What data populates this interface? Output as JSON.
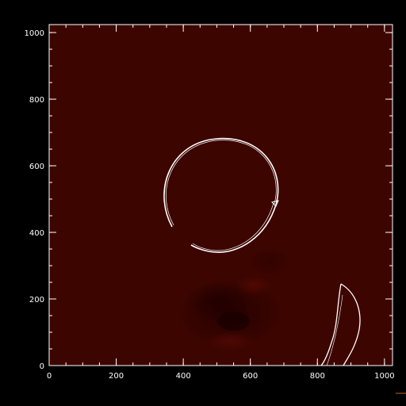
{
  "chart_data": {
    "type": "image",
    "x_ticks": [
      "0",
      "200",
      "400",
      "600",
      "800",
      "1000"
    ],
    "y_ticks": [
      "0",
      "200",
      "400",
      "600",
      "800",
      "1000"
    ],
    "xlim": [
      0,
      1024
    ],
    "ylim": [
      0,
      1024
    ],
    "x_tick_values": [
      0,
      200,
      400,
      600,
      800,
      1000
    ],
    "y_tick_values": [
      0,
      200,
      400,
      600,
      800,
      1000
    ],
    "x_minor_step": 50,
    "y_minor_step": 50,
    "colors": {
      "background": "#000000",
      "field": "#3d0500",
      "contour": "#ffffff",
      "axes": "#ffffff",
      "accent": "#c86030"
    }
  }
}
